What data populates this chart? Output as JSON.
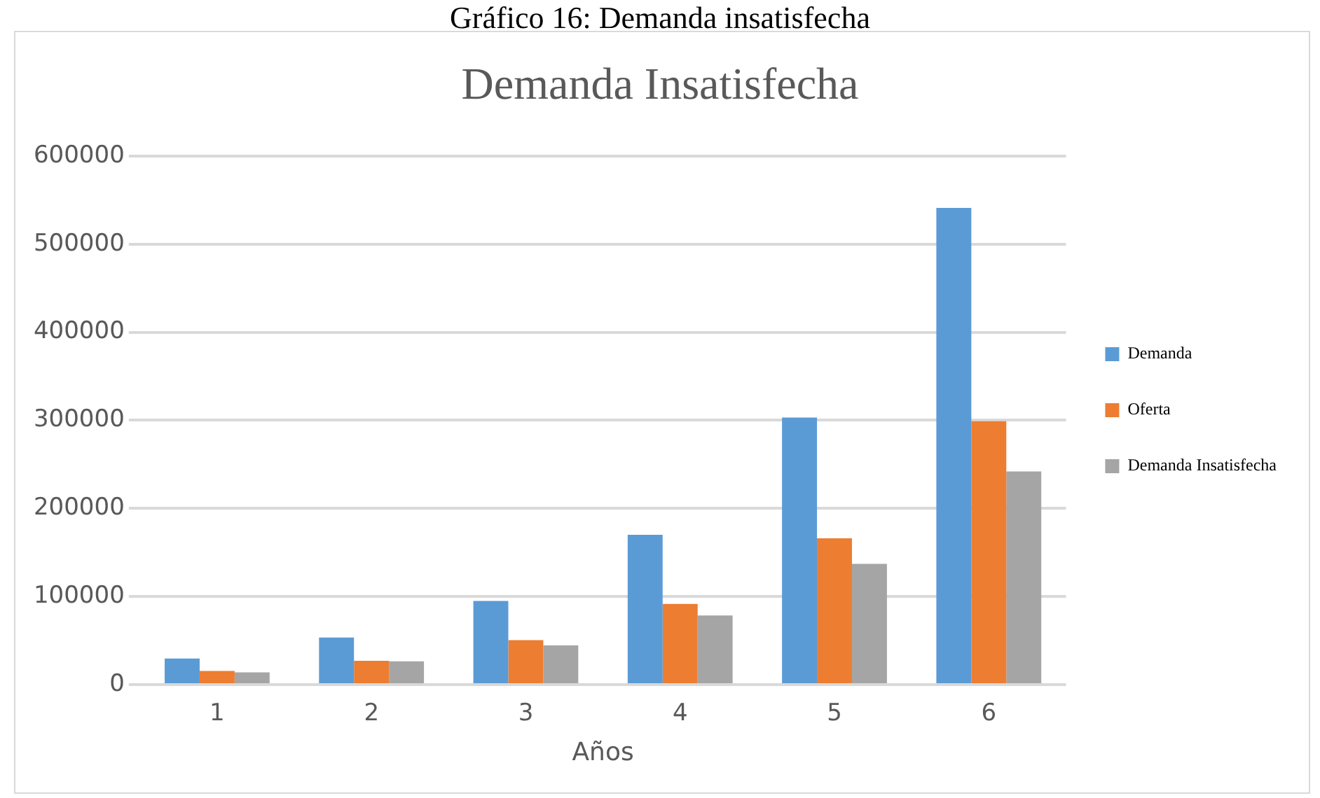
{
  "chart_data": {
    "type": "bar",
    "title": "Demanda Insatisfecha",
    "xlabel": "Años",
    "annotations": [
      "Gráfico 16: Demanda insatisfecha"
    ],
    "categories": [
      "1",
      "2",
      "3",
      "4",
      "5",
      "6"
    ],
    "series": [
      {
        "name": "Demanda",
        "color": "#5b9bd5",
        "values": [
          29500,
          53500,
          95000,
          170000,
          303000,
          541000
        ]
      },
      {
        "name": "Oferta",
        "color": "#ed7d31",
        "values": [
          15500,
          27000,
          50500,
          91500,
          166000,
          299000
        ]
      },
      {
        "name": "Demanda Insatisfecha",
        "color": "#a5a5a5",
        "values": [
          14000,
          26500,
          44500,
          78500,
          137000,
          242000
        ]
      }
    ],
    "ylim": [
      0,
      600000
    ],
    "yticks": [
      0,
      100000,
      200000,
      300000,
      400000,
      500000,
      600000
    ],
    "grid": "y",
    "legend": "right"
  }
}
